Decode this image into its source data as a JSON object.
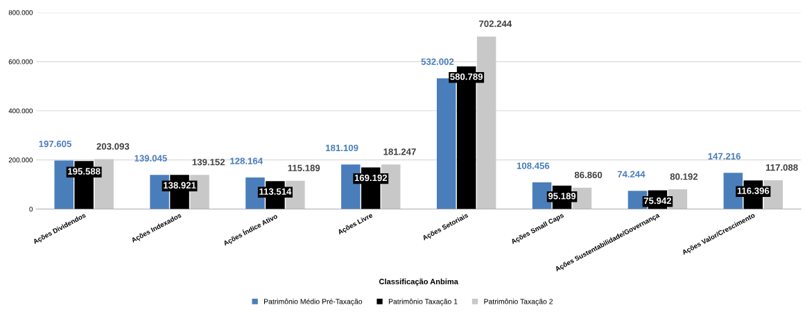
{
  "chart_data": {
    "type": "bar",
    "xlabel": "Classificação Anbima",
    "categories": [
      "Ações Dividendos",
      "Ações Indexados",
      "Ações Índice Ativo",
      "Ações Livre",
      "Ações Setoriais",
      "Ações Small Caps",
      "Ações Sustentabilidade/Governança",
      "Ações Valor/Crescimento"
    ],
    "series": [
      {
        "name": "Patrimônio Médio Pré-Taxação",
        "color": "#4a7ebb",
        "values": [
          197605,
          139045,
          128164,
          181109,
          532002,
          108456,
          74244,
          147216
        ],
        "value_labels": [
          "197.605",
          "139.045",
          "128.164",
          "181.109",
          "532.002",
          "108.456",
          "74.244",
          "147.216"
        ]
      },
      {
        "name": "Patrimônio Taxação 1",
        "color": "#000000",
        "values": [
          195588,
          138921,
          113514,
          169192,
          580789,
          95189,
          75942,
          116396
        ],
        "value_labels": [
          "195.588",
          "138.921",
          "113.514",
          "169.192",
          "580.789",
          "95.189",
          "75.942",
          "116.396"
        ]
      },
      {
        "name": "Patrimônio Taxação 2",
        "color": "#c8c8c8",
        "values": [
          203093,
          139152,
          115189,
          181247,
          702244,
          86860,
          80192,
          117088
        ],
        "value_labels": [
          "203.093",
          "139.152",
          "115.189",
          "181.247",
          "702.244",
          "86.860",
          "80.192",
          "117.088"
        ]
      }
    ],
    "ylim": [
      0,
      800000
    ],
    "yticks": [
      {
        "value": 0,
        "label": "0"
      },
      {
        "value": 200000,
        "label": "200.000"
      },
      {
        "value": 400000,
        "label": "400.000"
      },
      {
        "value": 600000,
        "label": "600.000"
      },
      {
        "value": 800000,
        "label": "800.000"
      }
    ],
    "grid": "y",
    "legend": "bottom"
  }
}
